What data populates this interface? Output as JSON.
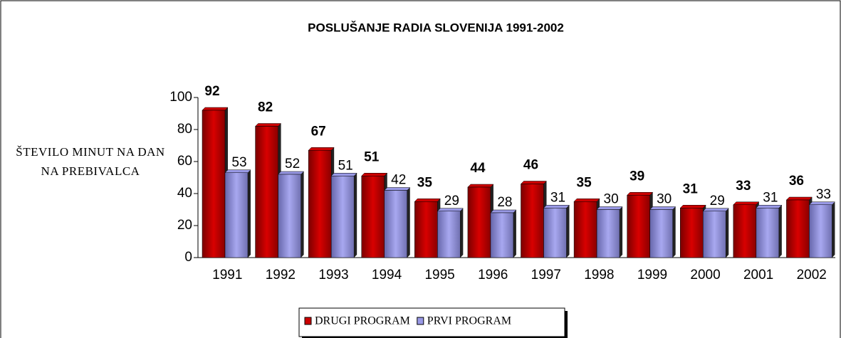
{
  "chart_data": {
    "type": "bar",
    "title": "POSLUŠANJE RADIA SLOVENIJA 1991-2002",
    "y_label": "ŠTEVILO MINUT NA DAN NA PREBIVALCA",
    "categories": [
      "1991",
      "1992",
      "1993",
      "1994",
      "1995",
      "1996",
      "1997",
      "1998",
      "1999",
      "2000",
      "2001",
      "2002"
    ],
    "series": [
      {
        "name": "DRUGI PROGRAM",
        "color": "#cc0000",
        "values": [
          92,
          82,
          67,
          51,
          35,
          44,
          46,
          35,
          39,
          31,
          33,
          36
        ]
      },
      {
        "name": "PRVI PROGRAM",
        "color": "#9999e6",
        "values": [
          53,
          52,
          51,
          42,
          29,
          28,
          31,
          30,
          30,
          29,
          31,
          33
        ]
      }
    ],
    "ylim": [
      0,
      100
    ],
    "yticks": [
      0,
      20,
      40,
      60,
      80,
      100
    ],
    "grid": false,
    "legend": "bottom"
  }
}
